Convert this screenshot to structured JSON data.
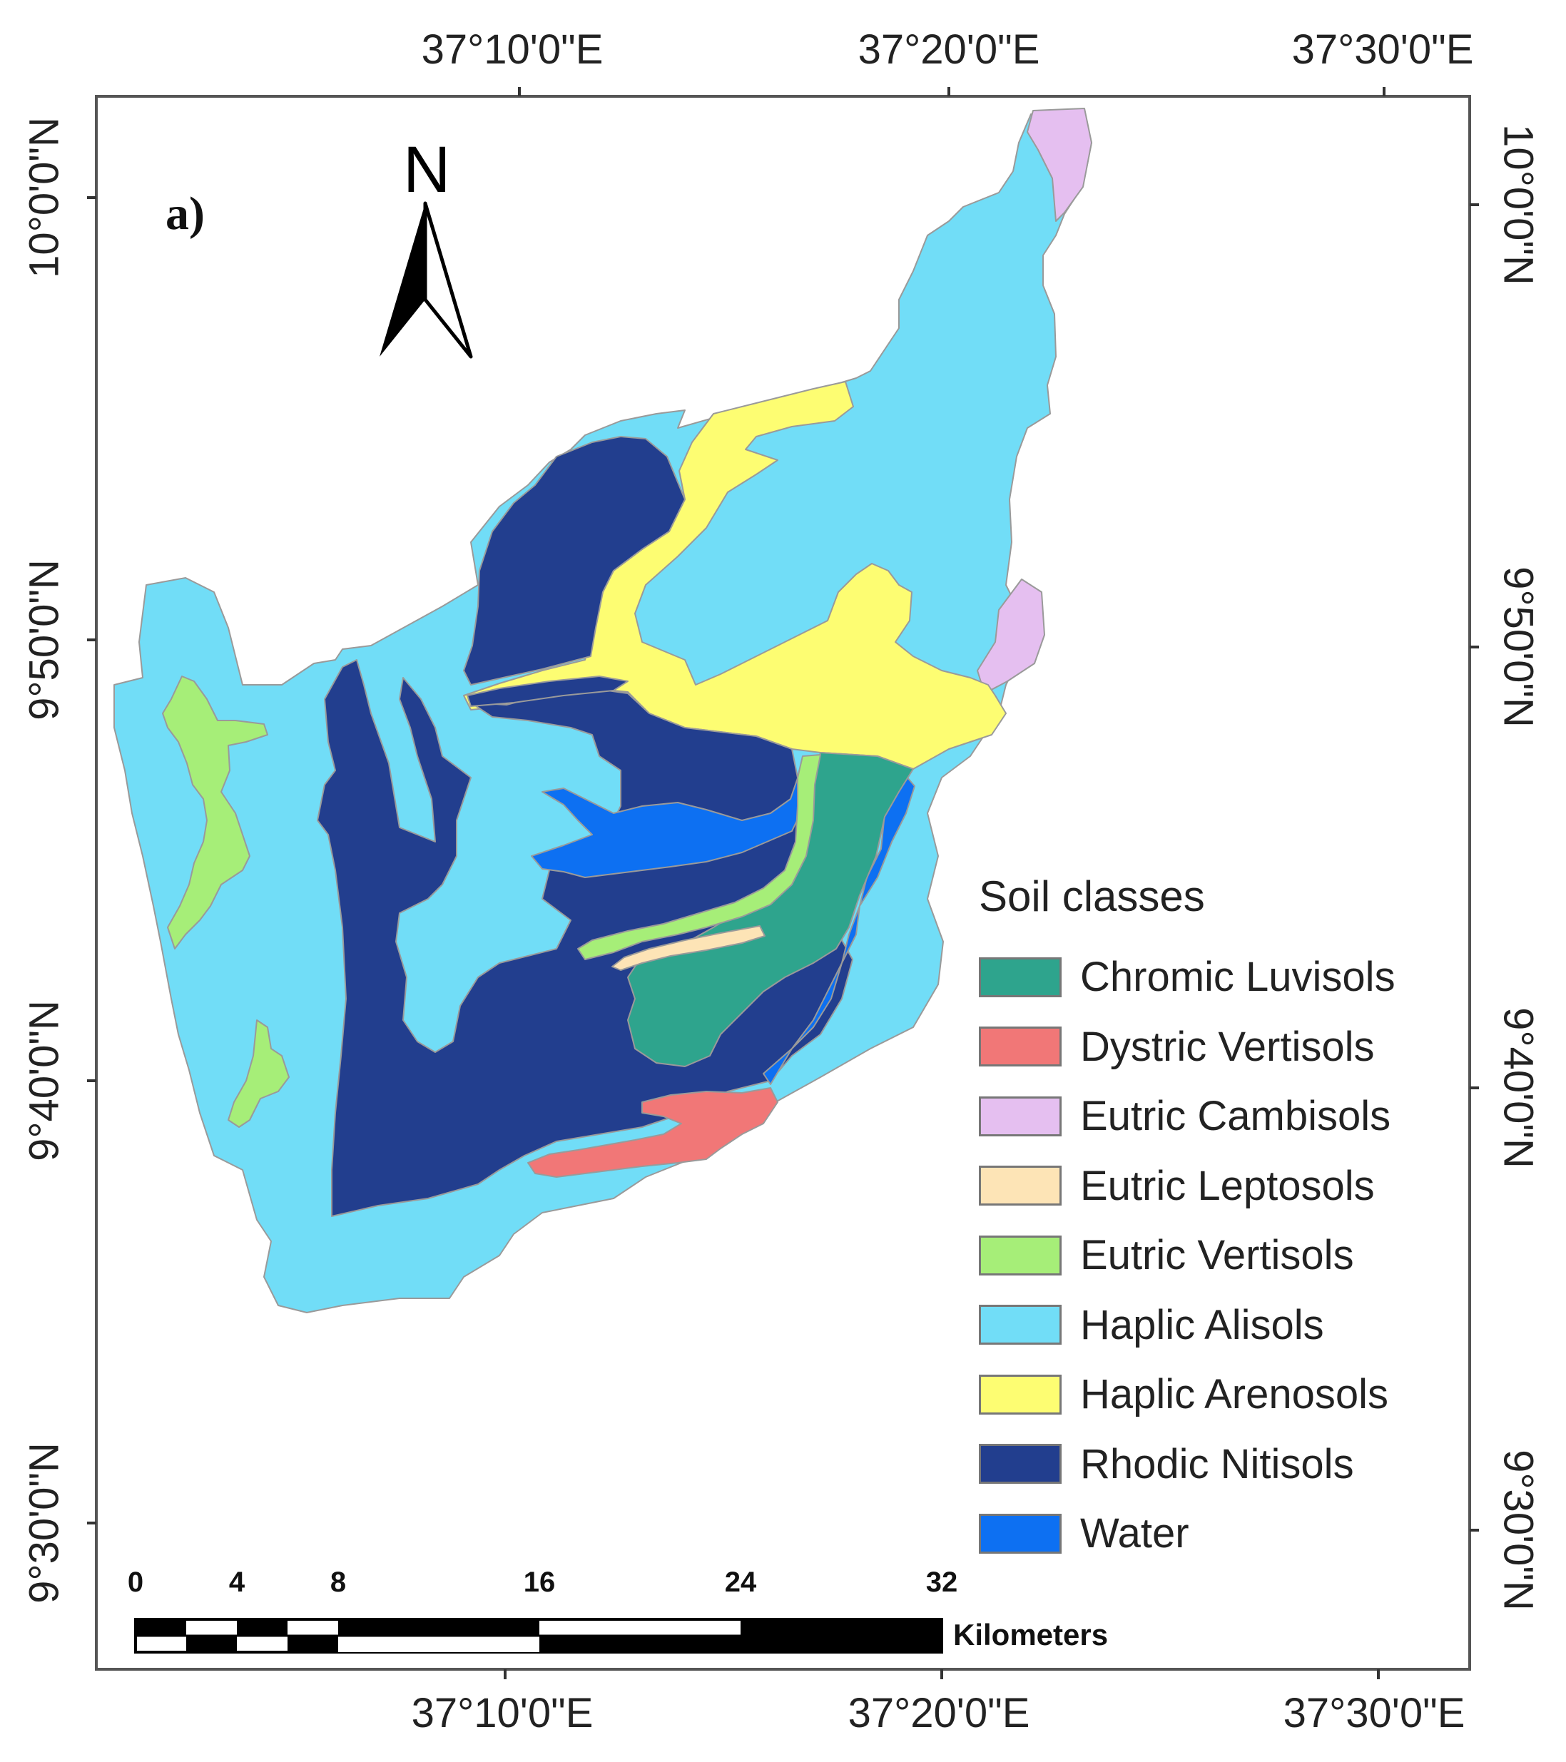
{
  "map": {
    "panel_label": "a)",
    "north_arrow": {
      "letter": "N",
      "icon": "north-arrow-icon"
    },
    "longitude_labels": [
      "37°10'0\"E",
      "37°20'0\"E",
      "37°30'0\"E"
    ],
    "latitude_labels": [
      "10°0'0\"N",
      "9°50'0\"N",
      "9°40'0\"N",
      "9°30'0\"N"
    ],
    "legend": {
      "title": "Soil classes",
      "items": [
        {
          "label": "Chromic Luvisols",
          "color": "#2ea48d"
        },
        {
          "label": "Dystric Vertisols",
          "color": "#f17777"
        },
        {
          "label": "Eutric Cambisols",
          "color": "#e5bff0"
        },
        {
          "label": "Eutric Leptosols",
          "color": "#fde4b6"
        },
        {
          "label": "Eutric Vertisols",
          "color": "#a6ee78"
        },
        {
          "label": "Haplic Alisols",
          "color": "#71ddf7"
        },
        {
          "label": "Haplic Arenosols",
          "color": "#fdfd72"
        },
        {
          "label": "Rhodic Nitisols",
          "color": "#223e8e"
        },
        {
          "label": "Water",
          "color": "#0d70f2"
        }
      ]
    },
    "scale_bar": {
      "ticks": [
        "0",
        "4",
        "8",
        "16",
        "24",
        "32"
      ],
      "unit": "Kilometers"
    }
  }
}
